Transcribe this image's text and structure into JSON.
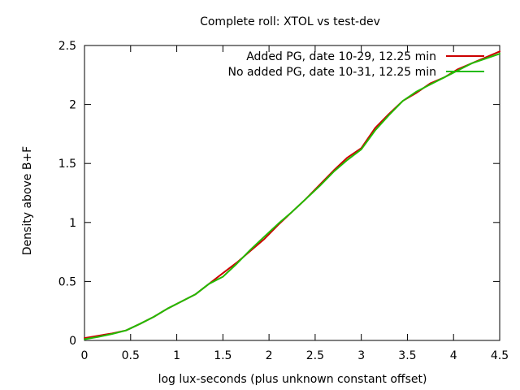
{
  "chart_data": {
    "type": "line",
    "title": "Complete roll: XTOL vs test-dev",
    "xlabel": "log lux-seconds (plus unknown constant offset)",
    "ylabel": "Density above B+F",
    "xlim": [
      0,
      4.5
    ],
    "ylim": [
      0,
      2.5
    ],
    "xticks": [
      0,
      0.5,
      1,
      1.5,
      2,
      2.5,
      3,
      3.5,
      4,
      4.5
    ],
    "xtick_labels": [
      "0",
      "0.5",
      "1",
      "1.5",
      "2",
      "2.5",
      "3",
      "3.5",
      "4",
      "4.5"
    ],
    "yticks": [
      0,
      0.5,
      1,
      1.5,
      2,
      2.5
    ],
    "ytick_labels": [
      "0",
      "0.5",
      "1",
      "1.5",
      "2",
      "2.5"
    ],
    "grid": false,
    "legend_position": "top-right",
    "series": [
      {
        "name": "Added PG, date 10-29, 12.25 min",
        "color": "#cc0000",
        "x": [
          0,
          0.15,
          0.3,
          0.45,
          0.6,
          0.75,
          0.9,
          1.05,
          1.2,
          1.35,
          1.5,
          1.65,
          1.8,
          1.95,
          2.1,
          2.25,
          2.4,
          2.55,
          2.7,
          2.85,
          3.0,
          3.15,
          3.3,
          3.45,
          3.6,
          3.75,
          3.9,
          4.05,
          4.2,
          4.35,
          4.5
        ],
        "y": [
          0.02,
          0.04,
          0.06,
          0.085,
          0.14,
          0.2,
          0.27,
          0.33,
          0.39,
          0.48,
          0.57,
          0.66,
          0.76,
          0.86,
          0.98,
          1.09,
          1.2,
          1.32,
          1.44,
          1.55,
          1.63,
          1.8,
          1.92,
          2.03,
          2.1,
          2.18,
          2.23,
          2.3,
          2.35,
          2.4,
          2.45
        ]
      },
      {
        "name": "No added PG, date 10-31, 12.25 min",
        "color": "#22bb00",
        "x": [
          0,
          0.15,
          0.3,
          0.45,
          0.6,
          0.75,
          0.9,
          1.05,
          1.2,
          1.35,
          1.5,
          1.65,
          1.8,
          1.95,
          2.1,
          2.25,
          2.4,
          2.55,
          2.7,
          2.85,
          3.0,
          3.15,
          3.3,
          3.45,
          3.6,
          3.75,
          3.9,
          4.05,
          4.2,
          4.35,
          4.5
        ],
        "y": [
          0.01,
          0.03,
          0.055,
          0.085,
          0.14,
          0.2,
          0.27,
          0.33,
          0.39,
          0.48,
          0.54,
          0.65,
          0.77,
          0.88,
          0.99,
          1.09,
          1.2,
          1.31,
          1.43,
          1.53,
          1.62,
          1.78,
          1.91,
          2.03,
          2.11,
          2.17,
          2.23,
          2.29,
          2.35,
          2.39,
          2.43
        ]
      }
    ]
  }
}
